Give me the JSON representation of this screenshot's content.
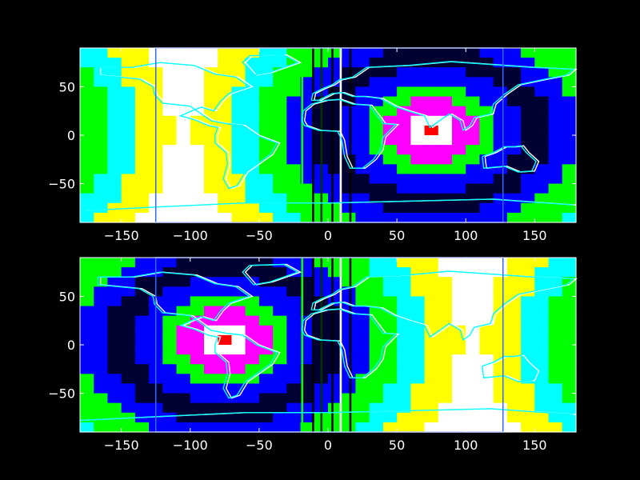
{
  "figure": {
    "background": "#000000"
  },
  "chart_data": [
    {
      "type": "heatmap",
      "title": "",
      "xlabel": "",
      "ylabel": "",
      "xlim": [
        -180,
        180
      ],
      "ylim": [
        -90,
        90
      ],
      "xticks": [
        -150,
        -100,
        -50,
        0,
        50,
        100,
        150
      ],
      "yticks": [
        -50,
        0,
        50
      ],
      "xtick_labels": [
        "−150",
        "−100",
        "−50",
        "0",
        "50",
        "100",
        "150"
      ],
      "ytick_labels": [
        "−50",
        "0",
        "50"
      ],
      "grid": false,
      "overlay": "world coastlines",
      "field": {
        "center_hot": [
          75,
          5
        ],
        "center_cold": [
          -75,
          5
        ],
        "colormap": [
          "#ffffff",
          "#ffff00",
          "#00ffff",
          "#00ff00",
          "#0000ff",
          "#000033",
          "#ff00ff",
          "#ff0000"
        ]
      },
      "overlay_box_x": [
        -125,
        127
      ]
    },
    {
      "type": "heatmap",
      "title": "",
      "xlabel": "",
      "ylabel": "",
      "xlim": [
        -180,
        180
      ],
      "ylim": [
        -90,
        90
      ],
      "xticks": [
        -150,
        -100,
        -50,
        0,
        50,
        100,
        150
      ],
      "yticks": [
        -50,
        0,
        50
      ],
      "xtick_labels": [
        "−150",
        "−100",
        "−50",
        "0",
        "50",
        "100",
        "150"
      ],
      "ytick_labels": [
        "−50",
        "0",
        "50"
      ],
      "grid": false,
      "overlay": "world coastlines",
      "field": {
        "center_hot": [
          -75,
          5
        ],
        "center_cold": [
          75,
          5
        ]
      },
      "overlay_box_x": [
        -125,
        127
      ]
    }
  ]
}
